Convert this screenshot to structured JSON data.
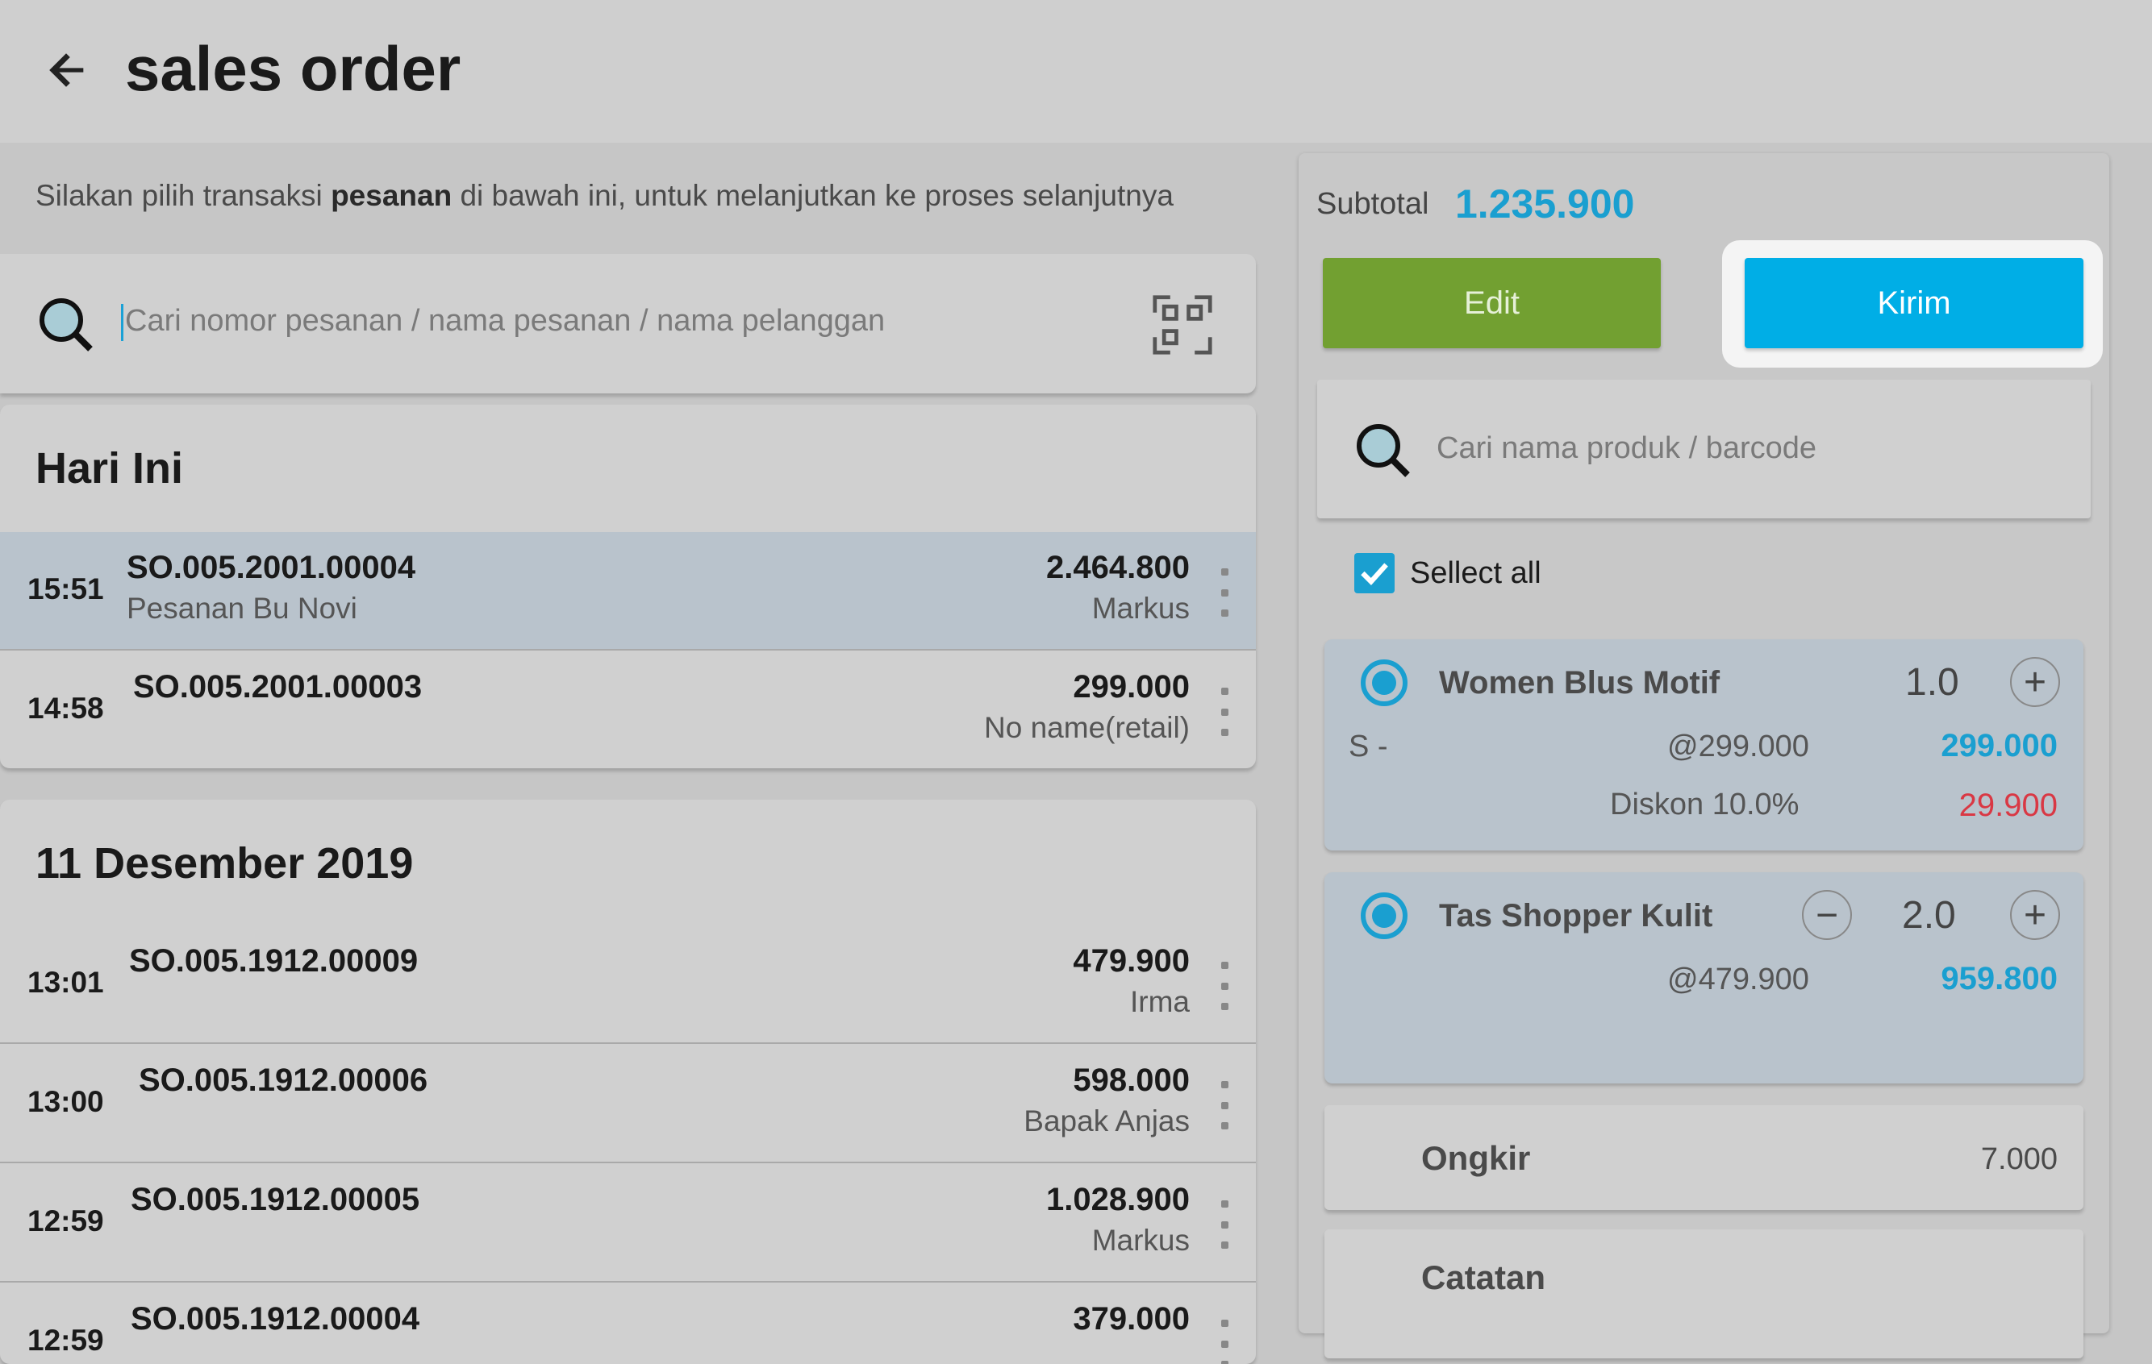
{
  "header": {
    "title": "sales order",
    "back_icon": "arrow-left-icon"
  },
  "instruction": {
    "before": "Silakan pilih transaksi ",
    "bold": "pesanan",
    "after": " di bawah ini, untuk melanjutkan ke proses selanjutnya"
  },
  "order_search": {
    "placeholder": "Cari nomor pesanan / nama pesanan / nama pelanggan",
    "search_icon": "magnifier-icon",
    "scan_icon": "qr-scan-icon"
  },
  "sections": [
    {
      "title": "Hari Ini",
      "orders": [
        {
          "time": "15:51",
          "number": "SO.005.2001.00004",
          "name": "Pesanan Bu Novi",
          "amount": "2.464.800",
          "customer": "Markus",
          "selected": true
        },
        {
          "time": "14:58",
          "number": "SO.005.2001.00003",
          "name": "",
          "amount": "299.000",
          "customer": "No name(retail)",
          "selected": false
        }
      ]
    },
    {
      "title": "11 Desember 2019",
      "orders": [
        {
          "time": "13:01",
          "number": "SO.005.1912.00009",
          "name": "",
          "amount": "479.900",
          "customer": "Irma"
        },
        {
          "time": "13:00",
          "number": "SO.005.1912.00006",
          "name": "",
          "amount": "598.000",
          "customer": "Bapak Anjas"
        },
        {
          "time": "12:59",
          "number": "SO.005.1912.00005",
          "name": "",
          "amount": "1.028.900",
          "customer": "Markus"
        },
        {
          "time": "12:59",
          "number": "SO.005.1912.00004",
          "name": "",
          "amount": "379.000",
          "customer": ""
        }
      ]
    }
  ],
  "right": {
    "subtotal_label": "Subtotal",
    "subtotal_value": "1.235.900",
    "edit_label": "Edit",
    "send_label": "Kirim",
    "product_search_placeholder": "Cari nama produk / barcode",
    "select_all_label": "Sellect all",
    "select_all_checked": true,
    "items": [
      {
        "name": "Women Blus Motif",
        "qty": "1.0",
        "variant": "S -",
        "unit_price": "@299.000",
        "total": "299.000",
        "discount_label": "Diskon 10.0%",
        "discount_value": "29.900"
      },
      {
        "name": "Tas Shopper Kulit",
        "qty": "2.0",
        "variant": "",
        "unit_price": "@479.900",
        "total": "959.800"
      }
    ],
    "shipping_label": "Ongkir",
    "shipping_value": "7.000",
    "notes_label": "Catatan"
  },
  "colors": {
    "accent": "#1a9fd0",
    "edit_button": "#72a031",
    "send_button": "#00aee6",
    "discount": "#d93844",
    "selected_row": "#b9c3cc"
  }
}
